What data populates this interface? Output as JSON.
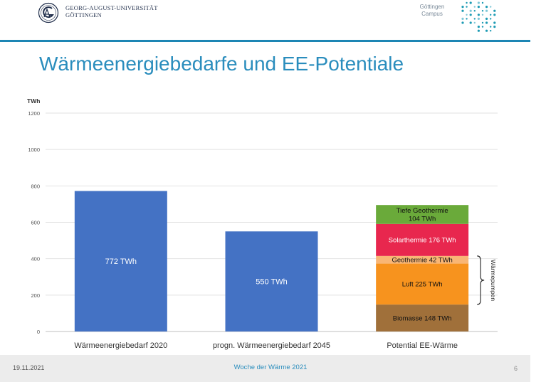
{
  "header": {
    "university_line1": "GEORG-AUGUST-UNIVERSITÄT",
    "university_line2": "GÖTTINGEN",
    "campus_line1": "Göttingen",
    "campus_line2": "Campus"
  },
  "slide": {
    "title": "Wärmeenergiebedarfe und EE-Potentiale"
  },
  "chart_data": {
    "type": "bar",
    "stacked": true,
    "ylabel": "TWh",
    "ylim": [
      0,
      1200
    ],
    "yticks": [
      "0",
      "200",
      "400",
      "600",
      "800",
      "1000",
      "1200"
    ],
    "ytick_values": [
      0,
      200,
      400,
      600,
      800,
      1000,
      1200
    ],
    "grid": true,
    "categories": [
      "Wärmeenergiebedarf 2020",
      "progn. Wärmeenergiebedarf 2045",
      "Potential EE-Wärme"
    ],
    "bars": [
      {
        "category": "Wärmeenergiebedarf 2020",
        "segments": [
          {
            "value": 772,
            "label": "772  TWh",
            "color": "#4472c4",
            "text_color": "#ffffff"
          }
        ]
      },
      {
        "category": "progn. Wärmeenergiebedarf 2045",
        "segments": [
          {
            "value": 550,
            "label": "550 TWh",
            "color": "#4472c4",
            "text_color": "#ffffff"
          }
        ]
      },
      {
        "category": "Potential EE-Wärme",
        "segments": [
          {
            "value": 148,
            "label": "Biomasse 148 TWh",
            "color": "#a0703a",
            "text_color": "#111111"
          },
          {
            "value": 225,
            "label": "Luft 225 TWh",
            "color": "#f7931e",
            "text_color": "#111111"
          },
          {
            "value": 42,
            "label": "Geothermie 42 TWh",
            "color": "#f9b675",
            "text_color": "#111111"
          },
          {
            "value": 176,
            "label": "Solarthermie 176 TWh",
            "color": "#e8274e",
            "text_color": "#ffffff"
          },
          {
            "value": 104,
            "label": "Tiefe Geothermie 104 TWh",
            "label_lines": [
              "Tiefe Geothermie",
              "104 TWh"
            ],
            "color": "#6aaa3a",
            "text_color": "#111111"
          }
        ]
      }
    ],
    "annotation": {
      "text": "Wärmepumpen",
      "spans_segments": [
        "Luft 225 TWh",
        "Geothermie 42 TWh"
      ]
    }
  },
  "footer": {
    "date": "19.11.2021",
    "event": "Woche der Wärme 2021",
    "page": "6"
  },
  "colors": {
    "accent": "#2a8dbd",
    "rule": "#1d86b4",
    "bar_blue": "#4472c4"
  }
}
